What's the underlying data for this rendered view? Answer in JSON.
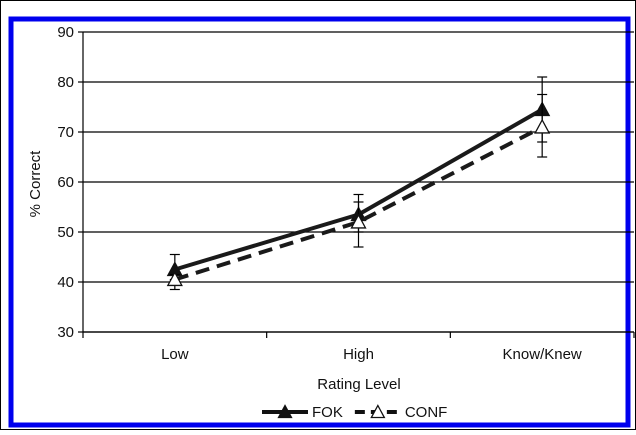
{
  "chart_data": {
    "type": "line",
    "categories": [
      "Low",
      "High",
      "Know/Knew"
    ],
    "xlabel": "Rating Level",
    "ylabel": "% Correct",
    "ylim": [
      30,
      90
    ],
    "yticks": [
      30,
      40,
      50,
      60,
      70,
      80,
      90
    ],
    "grid": true,
    "legend_position": "bottom",
    "series": [
      {
        "name": "FOK",
        "values": [
          42.5,
          53.5,
          74.5
        ],
        "error_low": [
          40.5,
          50.0,
          68.0
        ],
        "error_high": [
          45.5,
          57.5,
          81.0
        ],
        "marker": "filled-triangle",
        "line_style": "solid",
        "color": "#1a1a1a"
      },
      {
        "name": "CONF",
        "values": [
          40.5,
          52.0,
          71.0
        ],
        "error_low": [
          38.5,
          47.0,
          65.0
        ],
        "error_high": [
          41.5,
          56.0,
          77.5
        ],
        "marker": "open-triangle",
        "line_style": "dashed",
        "color": "#1a1a1a"
      }
    ],
    "frame_color": "#0000ee"
  }
}
